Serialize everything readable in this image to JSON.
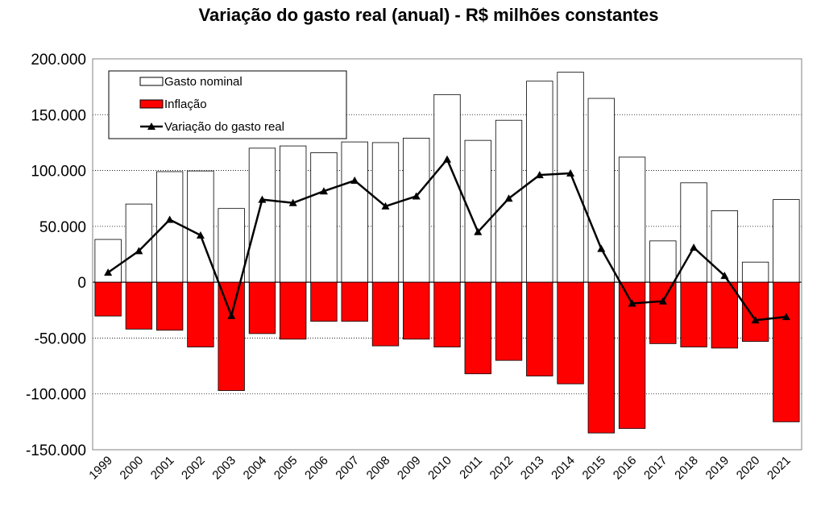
{
  "chart_data": {
    "type": "bar",
    "title": "Variação do gasto real (anual) - R$ milhões constantes",
    "categories": [
      "1999",
      "2000",
      "2001",
      "2002",
      "2003",
      "2004",
      "2005",
      "2006",
      "2007",
      "2008",
      "2009",
      "2010",
      "2011",
      "2012",
      "2013",
      "2014",
      "2015",
      "2016",
      "2017",
      "2018",
      "2019",
      "2020",
      "2021"
    ],
    "series": [
      {
        "name": "Gasto nominal",
        "kind": "bar",
        "color": "#ffffff",
        "values": [
          38300,
          70000,
          99000,
          99600,
          66000,
          120000,
          122000,
          116000,
          125600,
          125000,
          129000,
          168000,
          127000,
          145000,
          180000,
          188000,
          164600,
          112000,
          37000,
          89000,
          64000,
          18000,
          74000
        ]
      },
      {
        "name": "Inflação",
        "kind": "bar",
        "color": "#ff0000",
        "values": [
          -30300,
          -42000,
          -43000,
          -58000,
          -97000,
          -46000,
          -51000,
          -35000,
          -35000,
          -57000,
          -51000,
          -58000,
          -82000,
          -70000,
          -84000,
          -91000,
          -135000,
          -131000,
          -55000,
          -58000,
          -59000,
          -53000,
          -125000
        ]
      },
      {
        "name": "Variação do gasto real",
        "kind": "line",
        "marker": "triangle",
        "color": "#000000",
        "values": [
          8700,
          28000,
          56000,
          42000,
          -30000,
          74000,
          71000,
          81500,
          91000,
          68000,
          77000,
          110000,
          45000,
          75000,
          96000,
          97500,
          30000,
          -19000,
          -17000,
          31000,
          5800,
          -34000,
          -31000
        ]
      }
    ],
    "ylim": [
      -150000,
      200000
    ],
    "yticks": [
      200000,
      150000,
      100000,
      50000,
      0,
      -50000,
      -100000,
      -150000
    ],
    "ytick_labels": [
      "200.000",
      "150.000",
      "100.000",
      "50.000",
      "0",
      "-50.000",
      "-100.000",
      "-150.000"
    ],
    "grid": "horizontal dotted",
    "legend": "top-left"
  }
}
